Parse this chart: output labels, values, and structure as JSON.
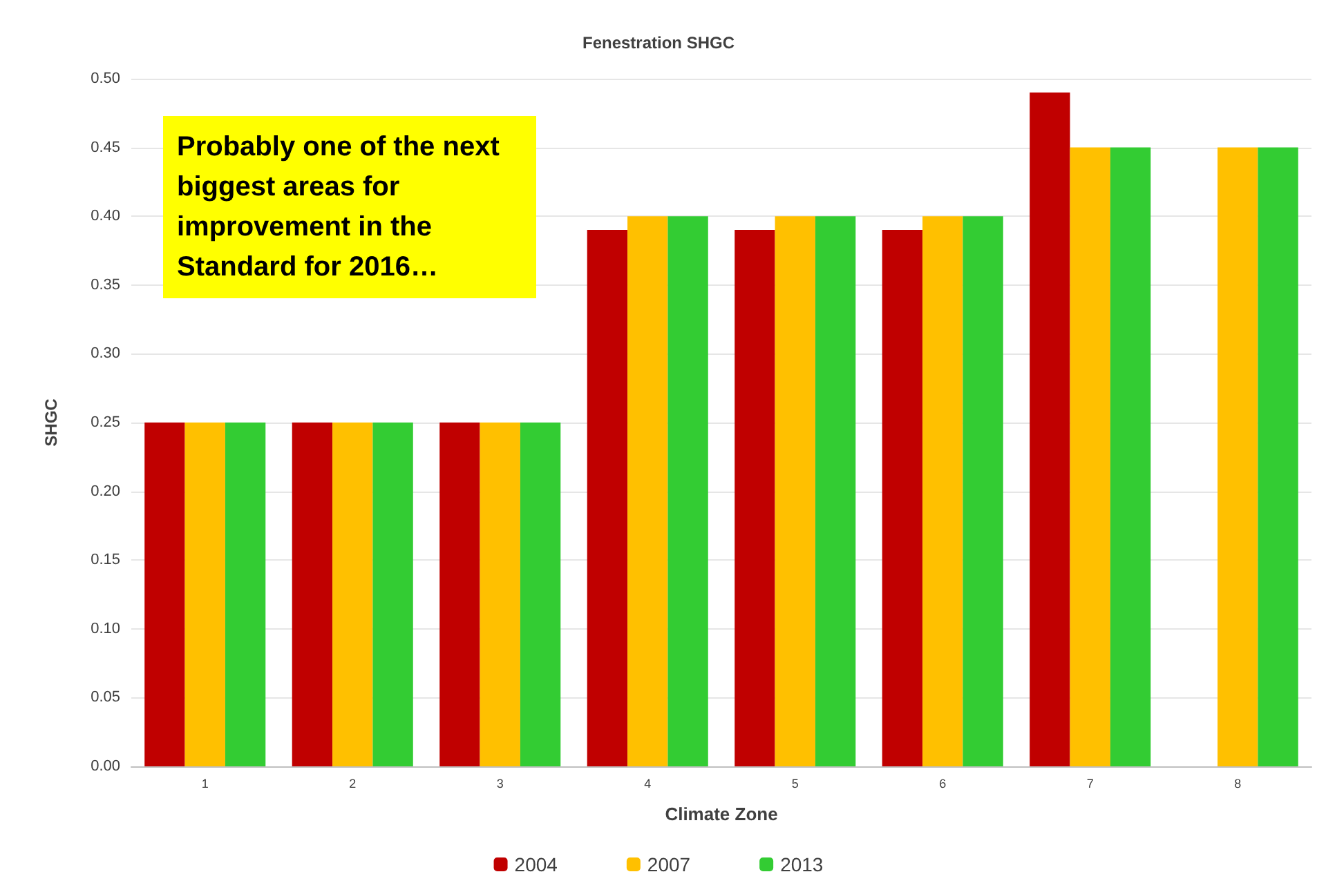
{
  "chart_data": {
    "type": "bar",
    "title": "Fenestration SHGC",
    "xlabel": "Climate Zone",
    "ylabel": "SHGC",
    "categories": [
      "1",
      "2",
      "3",
      "4",
      "5",
      "6",
      "7",
      "8"
    ],
    "series": [
      {
        "name": "2004",
        "color": "#c00000",
        "values": [
          0.25,
          0.25,
          0.25,
          0.39,
          0.39,
          0.39,
          0.49,
          null
        ]
      },
      {
        "name": "2007",
        "color": "#ffc000",
        "values": [
          0.25,
          0.25,
          0.25,
          0.4,
          0.4,
          0.4,
          0.45,
          0.45
        ]
      },
      {
        "name": "2013",
        "color": "#33cc33",
        "values": [
          0.25,
          0.25,
          0.25,
          0.4,
          0.4,
          0.4,
          0.45,
          0.45
        ]
      }
    ],
    "ylim": [
      0,
      0.5
    ],
    "yticks": [
      {
        "value": 0,
        "label": "0.00"
      },
      {
        "value": 0.05,
        "label": "0.05"
      },
      {
        "value": 0.1,
        "label": "0.10"
      },
      {
        "value": 0.15,
        "label": "0.15"
      },
      {
        "value": 0.2,
        "label": "0.20"
      },
      {
        "value": 0.25,
        "label": "0.25"
      },
      {
        "value": 0.3,
        "label": "0.30"
      },
      {
        "value": 0.35,
        "label": "0.35"
      },
      {
        "value": 0.4,
        "label": "0.40"
      },
      {
        "value": 0.45,
        "label": "0.45"
      },
      {
        "value": 0.5,
        "label": "0.50"
      }
    ],
    "grid": "y",
    "legend": "bottom",
    "annotations": [
      "Probably one of the next biggest areas for improvement in the Standard for 2016…"
    ]
  }
}
